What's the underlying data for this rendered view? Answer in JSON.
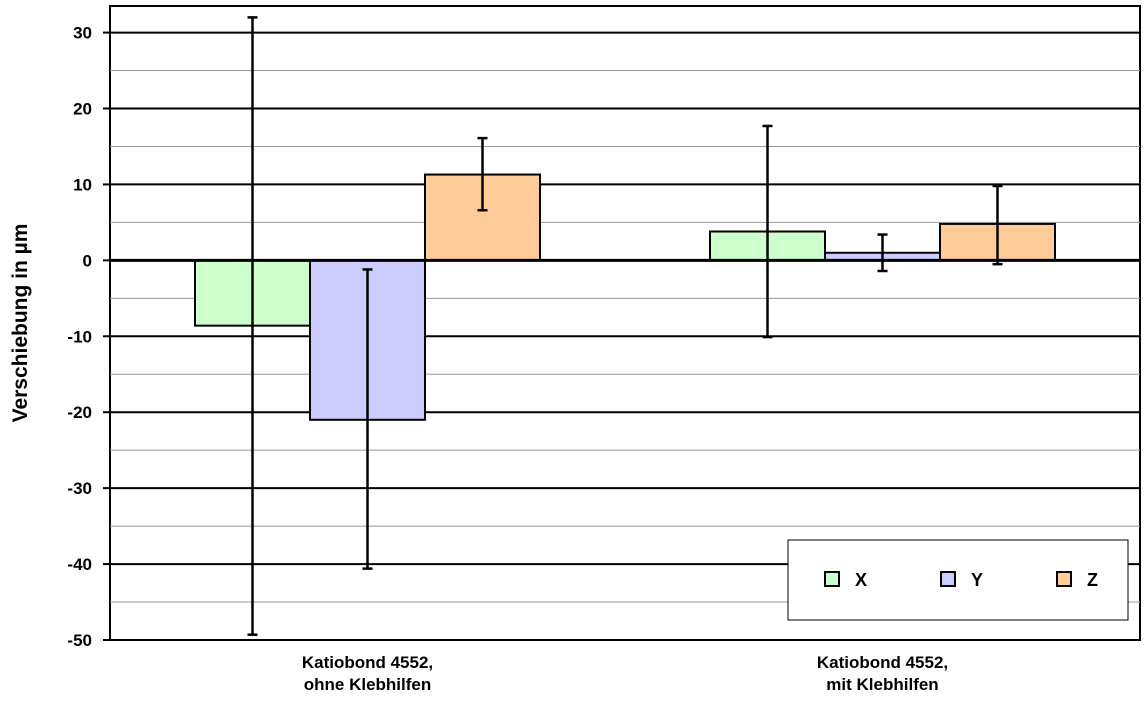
{
  "chart_data": {
    "type": "bar",
    "title": "",
    "xlabel": "",
    "ylabel": "Verschiebung in µm",
    "ylim": [
      -50,
      30
    ],
    "y_ticks": [
      30,
      20,
      10,
      0,
      -10,
      -20,
      -30,
      -40,
      -50
    ],
    "grid": true,
    "legend_position": "bottom-right",
    "categories": [
      [
        "Katiobond 4552,",
        "ohne Klebhilfen"
      ],
      [
        "Katiobond 4552,",
        "mit Klebhilfen"
      ]
    ],
    "series": [
      {
        "name": "X",
        "color": "#ccffcc",
        "values": [
          -8.6,
          3.8
        ],
        "err_low": [
          -49.3,
          -10.1
        ],
        "err_high": [
          32.0,
          17.7
        ]
      },
      {
        "name": "Y",
        "color": "#ccccff",
        "values": [
          -21.0,
          1.0
        ],
        "err_low": [
          -40.6,
          -1.4
        ],
        "err_high": [
          -1.2,
          3.4
        ]
      },
      {
        "name": "Z",
        "color": "#ffcc99",
        "values": [
          11.3,
          4.8
        ],
        "err_low": [
          6.6,
          -0.5
        ],
        "err_high": [
          16.1,
          9.8
        ]
      }
    ]
  }
}
